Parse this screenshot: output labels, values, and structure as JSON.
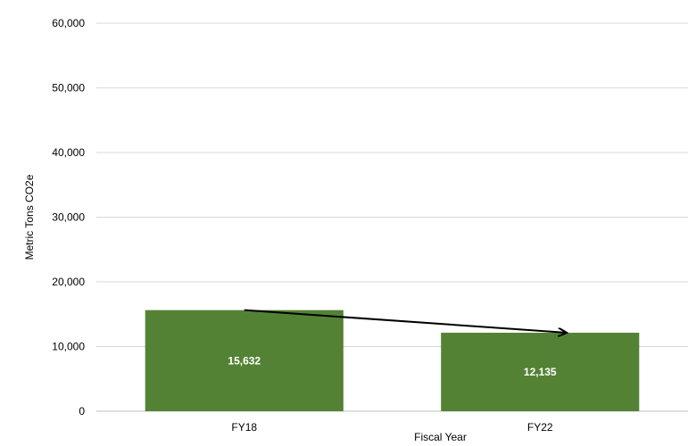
{
  "chart_data": {
    "type": "bar",
    "categories": [
      "FY18",
      "FY22"
    ],
    "values": [
      15632,
      12135
    ],
    "value_labels": [
      "15,632",
      "12,135"
    ],
    "title": "",
    "xlabel": "Fiscal Year",
    "ylabel": "Metric Tons CO2e",
    "ylim": [
      0,
      60000
    ],
    "yticks": [
      0,
      10000,
      20000,
      30000,
      40000,
      50000,
      60000
    ],
    "ytick_labels": [
      "0",
      "10,000",
      "20,000",
      "30,000",
      "40,000",
      "50,000",
      "60,000"
    ],
    "grid": true,
    "legend": "none",
    "bar_color": "#548235",
    "annotation": "arrow from FY18 bar top to FY22 bar top indicating decrease"
  }
}
